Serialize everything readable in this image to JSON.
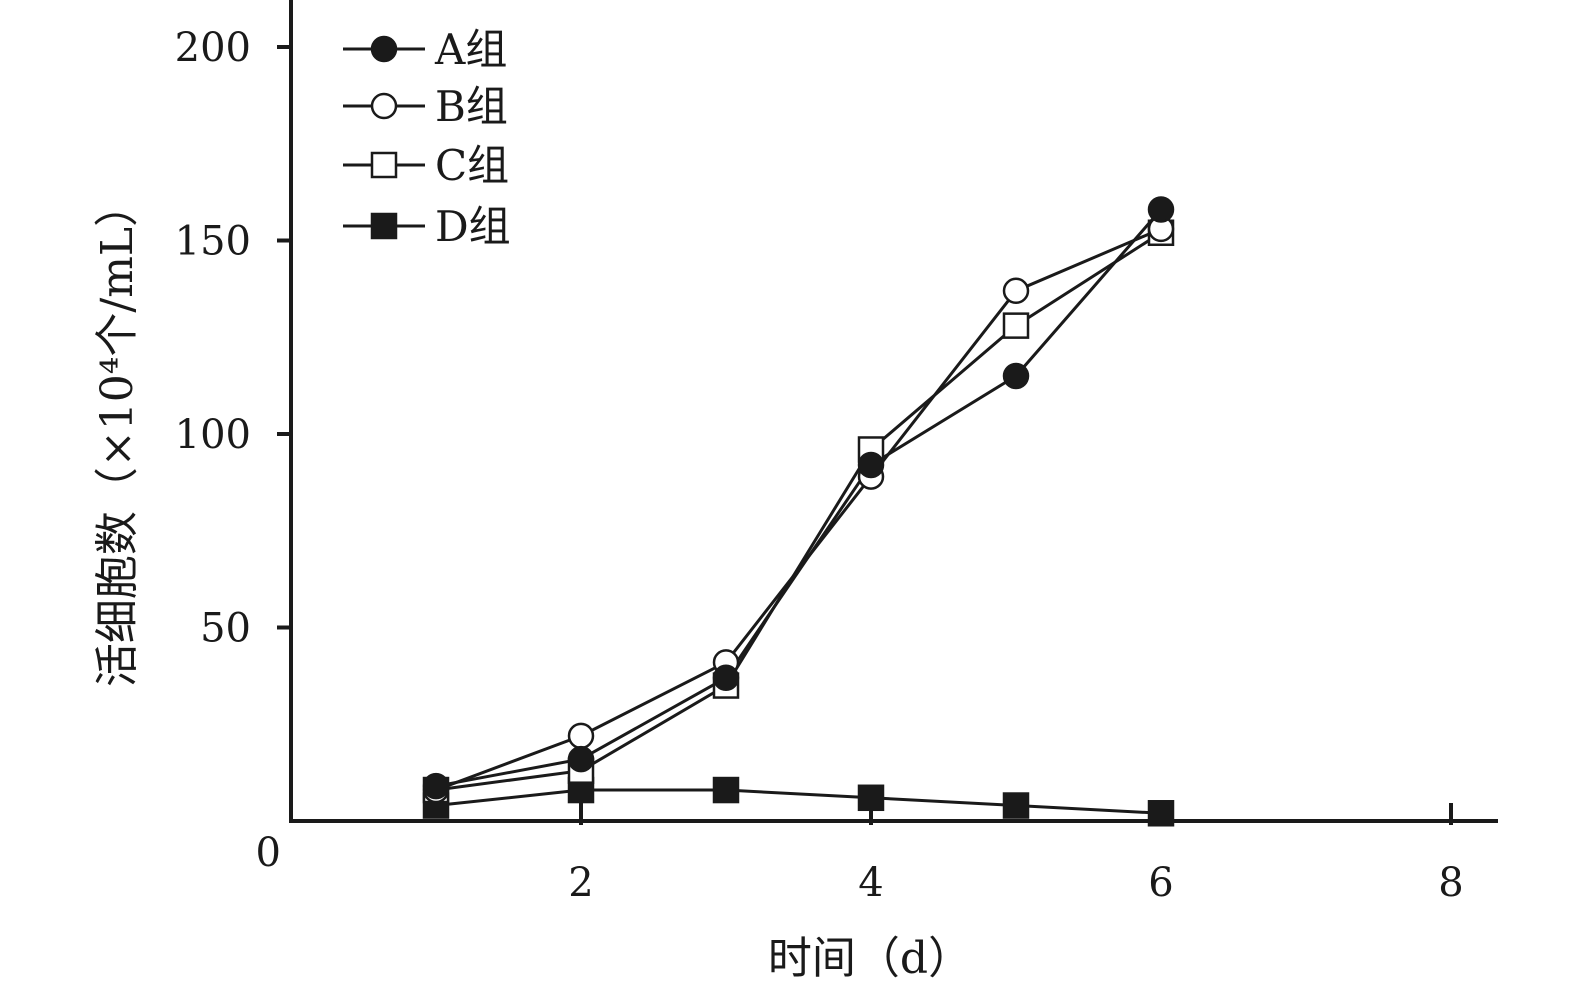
{
  "chart_data": {
    "type": "line",
    "xlabel": "时间（d）",
    "ylabel": "活细胞数（×10⁴个/mL）",
    "xlim": [
      0,
      8.3
    ],
    "ylim": [
      0,
      205
    ],
    "x_ticks": [
      "2",
      "4",
      "6",
      "8"
    ],
    "y_ticks": [
      "0",
      "50",
      "100",
      "150",
      "200"
    ],
    "legend_position": "top-left",
    "x": [
      1,
      2,
      3,
      4,
      5,
      6
    ],
    "series": [
      {
        "name": "A组",
        "marker": "filled-circle",
        "values": [
          9,
          16,
          37,
          92,
          115,
          158
        ]
      },
      {
        "name": "B组",
        "marker": "open-circle",
        "values": [
          8,
          22,
          41,
          89,
          137,
          153
        ]
      },
      {
        "name": "C组",
        "marker": "open-square",
        "values": [
          8,
          13,
          35,
          96,
          128,
          152
        ]
      },
      {
        "name": "D组",
        "marker": "filled-square",
        "values": [
          4,
          8,
          8,
          6,
          4,
          2
        ]
      }
    ]
  }
}
